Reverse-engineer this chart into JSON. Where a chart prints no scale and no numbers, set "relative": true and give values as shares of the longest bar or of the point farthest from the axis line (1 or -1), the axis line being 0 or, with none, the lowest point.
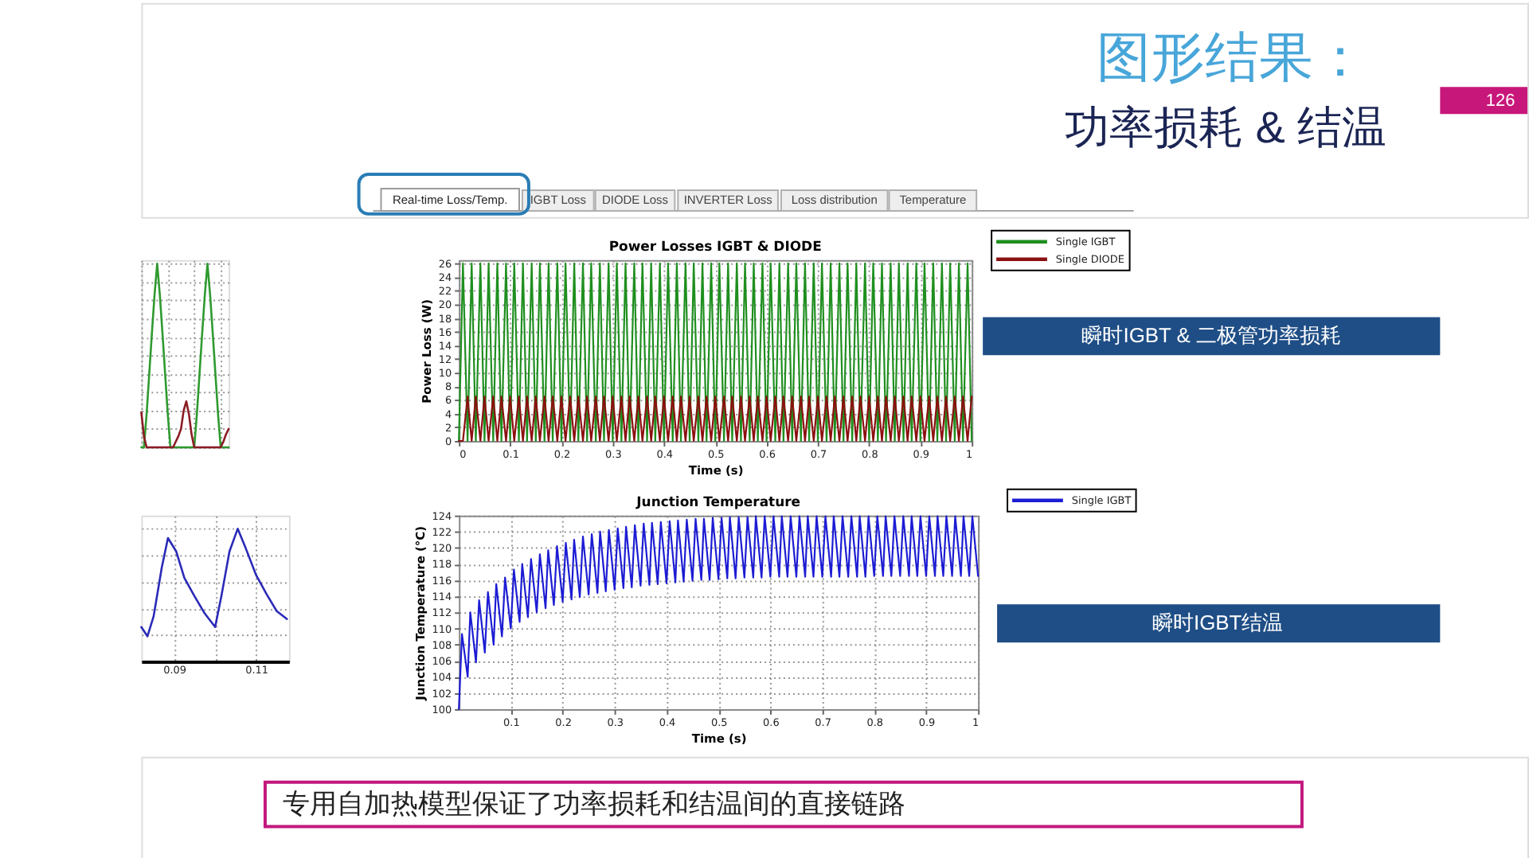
{
  "chart_data": [
    {
      "type": "other",
      "title": "图形结果：",
      "subtitle": "功率损耗 & 结温",
      "annotations": [
        "126",
        "Real-time Loss/Temp.",
        "IGBT Loss",
        "DIODE Loss",
        "INVERTER Loss",
        "Loss distribution",
        "Temperature"
      ]
    },
    {
      "type": "line",
      "relative": true,
      "grid": true,
      "tick_labels": false,
      "categories": [
        null,
        null,
        null,
        null,
        null,
        null,
        null,
        null,
        null,
        null,
        null,
        null,
        null,
        null,
        null,
        null,
        null,
        null,
        null,
        null,
        null,
        null,
        null,
        null,
        null,
        null,
        null,
        null,
        null,
        null,
        null,
        null,
        null,
        null
      ],
      "series": [
        {
          "color": "#2f9a2f",
          "values": [
            0,
            0,
            0.18,
            0.4,
            0.62,
            0.83,
            1,
            0.83,
            0.62,
            0.4,
            0.18,
            0,
            0,
            0,
            0,
            0,
            0,
            0,
            0,
            0,
            0,
            0.18,
            0.4,
            0.62,
            0.83,
            1,
            0.83,
            0.62,
            0.4,
            0.18,
            0,
            0,
            0,
            0
          ]
        },
        {
          "color": "#8b1c24",
          "values": [
            0.19,
            0.06,
            0,
            0,
            0,
            0,
            0,
            0,
            0,
            0,
            0,
            0,
            0,
            0.03,
            0.06,
            0.1,
            0.2,
            0.25,
            0.18,
            0.07,
            0,
            0,
            0,
            0,
            0,
            0,
            0,
            0,
            0,
            0,
            0,
            0.03,
            0.07,
            0.1
          ]
        }
      ]
    },
    {
      "type": "line",
      "relative": true,
      "grid": true,
      "tick_labels": "x",
      "xlim": [
        0.082,
        0.118
      ],
      "xticks": [
        0.09,
        {
          "value": 0.1,
          "label": null
        },
        0.11
      ],
      "x": [
        0.082,
        0.0835,
        0.085,
        0.087,
        0.0885,
        0.0905,
        0.0925,
        0.095,
        0.0975,
        0.1,
        0.1015,
        0.1035,
        0.1055,
        0.1075,
        0.11,
        0.1125,
        0.115,
        0.1175
      ],
      "series": [
        {
          "color": "#2a2ab8",
          "values": [
            0.26,
            0.19,
            0.34,
            0.71,
            0.93,
            0.83,
            0.63,
            0.49,
            0.36,
            0.26,
            0.49,
            0.83,
            1,
            0.85,
            0.65,
            0.51,
            0.38,
            0.32
          ]
        }
      ]
    },
    {
      "type": "line",
      "title": "Power Losses IGBT & DIODE",
      "xlabel": "Time (s)",
      "ylabel": "Power Loss (W)",
      "xlim": [
        0,
        1
      ],
      "xticks": [
        0,
        0.1,
        0.2,
        0.3,
        0.4,
        0.5,
        0.6,
        0.7,
        0.8,
        0.9,
        1
      ],
      "ylim": [
        0,
        26.5
      ],
      "yticks": [
        0,
        2,
        4,
        6,
        8,
        10,
        12,
        14,
        16,
        18,
        20,
        22,
        24,
        26
      ],
      "grid": true,
      "legend": "top right",
      "annotations": [
        "瞬时IGBT & 二极管功率损耗"
      ],
      "x": [
        0,
        0.008,
        0.017,
        0.025,
        0.033,
        0.042,
        0.05,
        0.058,
        0.067,
        0.075,
        0.083,
        0.092,
        0.1,
        0.108,
        0.117,
        0.125,
        0.133,
        0.142,
        0.15,
        0.158,
        0.167,
        0.175,
        0.183,
        0.192,
        0.2,
        0.208,
        0.217,
        0.225,
        0.233,
        0.242,
        0.25,
        0.258,
        0.267,
        0.275,
        0.283,
        0.292,
        0.3,
        0.308,
        0.317,
        0.325,
        0.333,
        0.342,
        0.35,
        0.358,
        0.367,
        0.375,
        0.383,
        0.392,
        0.4,
        0.408,
        0.417,
        0.425,
        0.433,
        0.442,
        0.45,
        0.458,
        0.467,
        0.475,
        0.483,
        0.492,
        0.5,
        0.508,
        0.517,
        0.525,
        0.533,
        0.542,
        0.55,
        0.558,
        0.567,
        0.575,
        0.583,
        0.592,
        0.6,
        0.608,
        0.617,
        0.625,
        0.633,
        0.642,
        0.65,
        0.658,
        0.667,
        0.675,
        0.683,
        0.692,
        0.7,
        0.708,
        0.717,
        0.725,
        0.733,
        0.742,
        0.75,
        0.758,
        0.767,
        0.775,
        0.783,
        0.792,
        0.8,
        0.808,
        0.817,
        0.825,
        0.833,
        0.842,
        0.85,
        0.858,
        0.867,
        0.875,
        0.883,
        0.892,
        0.9,
        0.908,
        0.917,
        0.925,
        0.933,
        0.942,
        0.95,
        0.958,
        0.967,
        0.975,
        0.983,
        0.992,
        1
      ],
      "series": [
        {
          "name": "Single IGBT",
          "color": "#1f8f1f",
          "values": [
            0,
            26,
            0,
            26,
            0,
            26,
            0,
            26,
            0,
            26,
            0,
            26,
            0,
            26,
            0,
            26,
            0,
            26,
            0,
            26,
            0,
            26,
            0,
            26,
            0,
            26,
            0,
            26,
            0,
            26,
            0,
            26,
            0,
            26,
            0,
            26,
            0,
            26,
            0,
            26,
            0,
            26,
            0,
            26,
            0,
            26,
            0,
            26,
            0,
            26,
            0,
            26,
            0,
            26,
            0,
            26,
            0,
            26,
            0,
            26,
            0,
            26,
            0,
            26,
            0,
            26,
            0,
            26,
            0,
            26,
            0,
            26,
            0,
            26,
            0,
            26,
            0,
            26,
            0,
            26,
            0,
            26,
            0,
            26,
            0,
            26,
            0,
            26,
            0,
            26,
            0,
            26,
            0,
            26,
            0,
            26,
            0,
            26,
            0,
            26,
            0,
            26,
            0,
            26,
            0,
            26,
            0,
            26,
            0,
            26,
            0,
            26,
            0,
            26,
            0,
            26,
            0,
            26,
            0,
            26,
            0
          ]
        },
        {
          "name": "Single DIODE",
          "color": "#8b1010",
          "values": [
            0,
            0,
            6.5,
            0,
            6.5,
            0,
            6.5,
            0,
            6.5,
            0,
            6.5,
            0,
            6.5,
            0,
            6.5,
            0,
            6.5,
            0,
            6.5,
            0,
            6.5,
            0,
            6.5,
            0,
            6.5,
            0,
            6.5,
            0,
            6.5,
            0,
            6.5,
            0,
            6.5,
            0,
            6.5,
            0,
            6.5,
            0,
            6.5,
            0,
            6.5,
            0,
            6.5,
            0,
            6.5,
            0,
            6.5,
            0,
            6.5,
            0,
            6.5,
            0,
            6.5,
            0,
            6.5,
            0,
            6.5,
            0,
            6.5,
            0,
            6.5,
            0,
            6.5,
            0,
            6.5,
            0,
            6.5,
            0,
            6.5,
            0,
            6.5,
            0,
            6.5,
            0,
            6.5,
            0,
            6.5,
            0,
            6.5,
            0,
            6.5,
            0,
            6.5,
            0,
            6.5,
            0,
            6.5,
            0,
            6.5,
            0,
            6.5,
            0,
            6.5,
            0,
            6.5,
            0,
            6.5,
            0,
            6.5,
            0,
            6.5,
            0,
            6.5,
            0,
            6.5,
            0,
            6.5,
            0,
            6.5,
            0,
            6.5,
            0,
            6.5,
            0,
            6.5,
            0,
            6.5,
            0,
            6.5,
            0,
            6.5
          ]
        }
      ]
    },
    {
      "type": "line",
      "title": "Junction Temperature",
      "xlabel": "Time (s)",
      "ylabel": "Junction Temperature (°C)",
      "xlim": [
        0,
        1
      ],
      "xticks": [
        0.1,
        0.2,
        0.3,
        0.4,
        0.5,
        0.6,
        0.7,
        0.8,
        0.9,
        1
      ],
      "ylim": [
        100,
        124
      ],
      "yticks": [
        100,
        102,
        104,
        106,
        108,
        110,
        112,
        114,
        116,
        118,
        120,
        122,
        124
      ],
      "grid": true,
      "legend": "top right",
      "annotations": [
        "瞬时IGBT结温"
      ],
      "x": [
        0,
        0.006,
        0.017,
        0.022,
        0.033,
        0.039,
        0.05,
        0.056,
        0.067,
        0.072,
        0.083,
        0.089,
        0.1,
        0.106,
        0.117,
        0.122,
        0.133,
        0.139,
        0.15,
        0.156,
        0.167,
        0.172,
        0.183,
        0.189,
        0.2,
        0.206,
        0.217,
        0.222,
        0.233,
        0.239,
        0.25,
        0.256,
        0.267,
        0.272,
        0.283,
        0.289,
        0.3,
        0.306,
        0.317,
        0.322,
        0.333,
        0.339,
        0.35,
        0.356,
        0.367,
        0.372,
        0.383,
        0.389,
        0.4,
        0.406,
        0.417,
        0.422,
        0.433,
        0.439,
        0.45,
        0.456,
        0.467,
        0.472,
        0.483,
        0.489,
        0.5,
        0.506,
        0.517,
        0.522,
        0.533,
        0.539,
        0.55,
        0.556,
        0.567,
        0.572,
        0.583,
        0.589,
        0.6,
        0.606,
        0.617,
        0.622,
        0.633,
        0.639,
        0.65,
        0.656,
        0.667,
        0.672,
        0.683,
        0.689,
        0.7,
        0.706,
        0.717,
        0.722,
        0.733,
        0.739,
        0.75,
        0.756,
        0.767,
        0.772,
        0.783,
        0.789,
        0.8,
        0.806,
        0.817,
        0.822,
        0.833,
        0.839,
        0.85,
        0.856,
        0.867,
        0.872,
        0.883,
        0.889,
        0.9,
        0.906,
        0.917,
        0.922,
        0.933,
        0.939,
        0.95,
        0.956,
        0.967,
        0.972,
        0.983,
        0.989,
        1
      ],
      "series": [
        {
          "name": "Single IGBT",
          "color": "#1c1cd4",
          "values": [
            100,
            109.3,
            104,
            112,
            105.8,
            113.5,
            107,
            114.5,
            108,
            115.5,
            109,
            116.3,
            110,
            117.3,
            110.8,
            118,
            111.4,
            118.6,
            112,
            119.2,
            112.5,
            119.7,
            112.9,
            120.2,
            113.3,
            120.6,
            113.6,
            121,
            113.9,
            121.4,
            114.2,
            121.7,
            114.4,
            122,
            114.6,
            122.2,
            114.8,
            122.4,
            115,
            122.6,
            115.1,
            122.8,
            115.3,
            123,
            115.4,
            123.1,
            115.5,
            123.2,
            115.6,
            123.3,
            115.7,
            123.4,
            115.8,
            123.5,
            115.9,
            123.6,
            116,
            123.6,
            116,
            123.7,
            116.1,
            123.7,
            116.2,
            123.8,
            116.2,
            123.8,
            116.3,
            123.8,
            116.3,
            123.9,
            116.3,
            123.9,
            116.4,
            123.9,
            116.4,
            123.9,
            116.4,
            123.9,
            116.4,
            123.9,
            116.4,
            123.9,
            116.4,
            123.9,
            116.4,
            123.9,
            116.4,
            123.9,
            116.4,
            123.9,
            116.4,
            123.9,
            116.4,
            123.9,
            116.4,
            123.9,
            116.5,
            123.9,
            116.5,
            123.9,
            116.5,
            123.9,
            116.5,
            123.9,
            116.5,
            123.9,
            116.5,
            123.9,
            116.5,
            123.9,
            116.5,
            123.9,
            116.5,
            123.9,
            116.5,
            123.9,
            116.5,
            123.9,
            116.5,
            123.9,
            116.5
          ]
        }
      ]
    },
    {
      "type": "other",
      "annotations": [
        "专用自加热模型保证了功率损耗和结温间的直接链路"
      ]
    }
  ]
}
